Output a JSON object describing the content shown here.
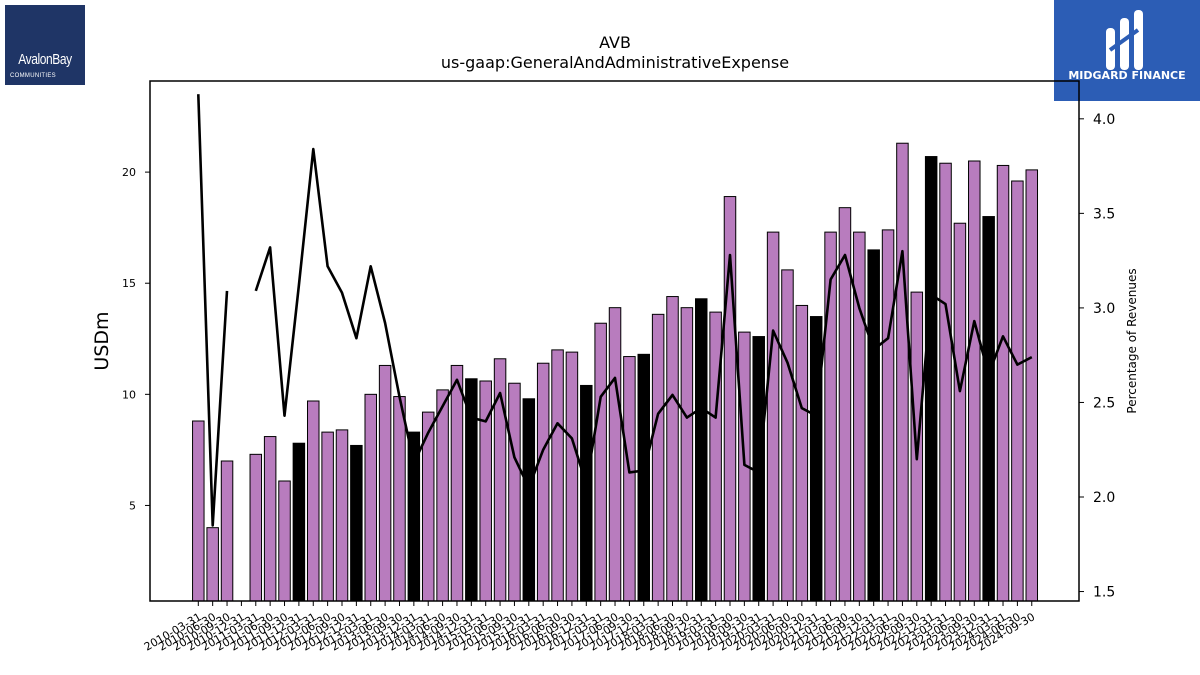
{
  "logos": {
    "left": {
      "name": "AvalonBay",
      "sub": "COMMUNITIES"
    },
    "right": {
      "name": "MIDGARD FINANCE"
    }
  },
  "colors": {
    "bar_primary": "#b87cbe",
    "bar_highlight": "#000000",
    "line": "#000000",
    "edge": "#000000"
  },
  "chart_data": {
    "type": "bar",
    "title": "AVB",
    "subtitle": "us-gaap:GeneralAndAdministrativeExpense",
    "ylabel": "USDm",
    "y2label": "Percentage of Revenues",
    "ylim": [
      0.7,
      24.1
    ],
    "y2lim": [
      1.45,
      4.2
    ],
    "yticks": [
      5,
      10,
      15,
      20
    ],
    "y2ticks": [
      "1.5",
      "2.0",
      "2.5",
      "3.0",
      "3.5",
      "4.0"
    ],
    "categories": [
      "2010-03-31",
      "2010-06-30",
      "2010-09-30",
      "2010-12-31",
      "2011-03-31",
      "2011-06-30",
      "2011-09-30",
      "2011-12-31",
      "2012-03-31",
      "2012-06-30",
      "2012-09-30",
      "2012-12-31",
      "2013-03-31",
      "2013-06-30",
      "2013-09-30",
      "2013-12-31",
      "2014-03-31",
      "2014-06-30",
      "2014-09-30",
      "2014-12-31",
      "2015-03-31",
      "2015-06-30",
      "2015-09-30",
      "2015-12-31",
      "2016-03-31",
      "2016-06-30",
      "2016-09-30",
      "2016-12-31",
      "2017-03-31",
      "2017-06-30",
      "2017-09-30",
      "2017-12-31",
      "2018-03-31",
      "2018-06-30",
      "2018-09-30",
      "2018-12-31",
      "2019-03-31",
      "2019-06-30",
      "2019-09-30",
      "2019-12-31",
      "2020-03-31",
      "2020-06-30",
      "2020-09-30",
      "2020-12-31",
      "2021-03-31",
      "2021-06-30",
      "2021-09-30",
      "2021-12-31",
      "2022-03-31",
      "2022-06-30",
      "2022-09-30",
      "2022-12-31",
      "2023-03-31",
      "2023-06-30",
      "2023-09-30",
      "2023-12-31",
      "2024-03-31",
      "2024-06-30",
      "2024-09-30"
    ],
    "series": [
      {
        "type": "bar",
        "axis": "left",
        "values": [
          8.8,
          4.0,
          7.0,
          null,
          7.3,
          8.1,
          6.1,
          7.8,
          9.7,
          8.3,
          8.4,
          7.7,
          10.0,
          11.3,
          9.9,
          8.3,
          9.2,
          10.2,
          11.3,
          10.7,
          10.6,
          11.6,
          10.5,
          9.8,
          11.4,
          12.0,
          11.9,
          10.4,
          13.2,
          13.9,
          11.7,
          11.8,
          13.6,
          14.4,
          13.9,
          14.3,
          13.7,
          18.9,
          12.8,
          12.6,
          17.3,
          15.6,
          14.0,
          13.5,
          17.3,
          18.4,
          17.3,
          16.5,
          17.4,
          21.3,
          14.6,
          20.7,
          20.4,
          17.7,
          20.5,
          18.0,
          20.3,
          19.6,
          20.1
        ],
        "highlight": [
          7,
          11,
          15,
          19,
          23,
          27,
          31,
          35,
          39,
          43,
          47,
          51,
          55
        ]
      },
      {
        "type": "line",
        "axis": "right",
        "values": [
          4.13,
          1.85,
          3.09,
          null,
          3.09,
          3.32,
          2.43,
          3.12,
          3.84,
          3.22,
          3.08,
          2.84,
          3.22,
          2.92,
          2.53,
          2.18,
          2.34,
          2.48,
          2.62,
          2.42,
          2.4,
          2.55,
          2.21,
          2.05,
          2.25,
          2.39,
          2.31,
          2.07,
          2.53,
          2.63,
          2.13,
          2.14,
          2.44,
          2.54,
          2.42,
          2.47,
          2.42,
          3.28,
          2.17,
          2.13,
          2.88,
          2.71,
          2.47,
          2.43,
          3.15,
          3.28,
          3.0,
          2.78,
          2.84,
          3.3,
          2.2,
          3.07,
          3.02,
          2.56,
          2.93,
          2.65,
          2.85,
          2.7,
          2.74
        ]
      }
    ]
  }
}
